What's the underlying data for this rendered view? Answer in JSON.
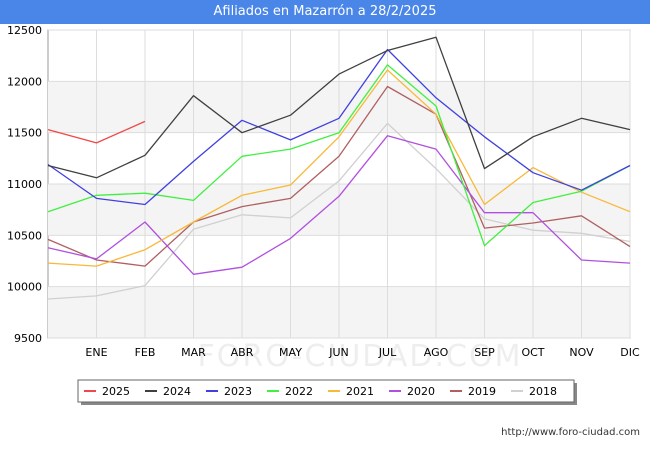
{
  "title": "Afiliados en Mazarrón a 28/2/2025",
  "footer_url": "http://www.foro-ciudad.com",
  "watermark": "FORO-CIUDAD.COM",
  "chart_data": {
    "type": "line",
    "x": [
      "",
      "ENE",
      "FEB",
      "MAR",
      "ABR",
      "MAY",
      "JUN",
      "JUL",
      "AGO",
      "SEP",
      "OCT",
      "NOV",
      "DIC"
    ],
    "ylim": [
      9500,
      12500
    ],
    "yticks": [
      9500,
      10000,
      10500,
      11000,
      11500,
      12000,
      12500
    ],
    "grid": true,
    "legend_position": "bottom",
    "series": [
      {
        "name": "2025",
        "color": "#f04848",
        "values": [
          11530,
          11400,
          11610,
          null,
          null,
          null,
          null,
          null,
          null,
          null,
          null,
          null,
          null
        ]
      },
      {
        "name": "2024",
        "color": "#404040",
        "values": [
          11180,
          11060,
          11280,
          11860,
          11500,
          11670,
          12070,
          12300,
          12430,
          11150,
          11460,
          11640,
          11530
        ]
      },
      {
        "name": "2023",
        "color": "#4040e0",
        "values": [
          11190,
          10860,
          10800,
          11220,
          11620,
          11430,
          11640,
          12310,
          11840,
          11460,
          11110,
          10940,
          11180
        ]
      },
      {
        "name": "2022",
        "color": "#40f040",
        "values": [
          10730,
          10890,
          10910,
          10840,
          11270,
          11340,
          11500,
          12160,
          11760,
          10400,
          10820,
          10930,
          11180
        ]
      },
      {
        "name": "2021",
        "color": "#f8b838",
        "values": [
          10230,
          10200,
          10360,
          10630,
          10890,
          10990,
          11460,
          12110,
          11680,
          10800,
          11160,
          10920,
          10730
        ]
      },
      {
        "name": "2020",
        "color": "#b050e0",
        "values": [
          10380,
          10270,
          10630,
          10120,
          10190,
          10470,
          10880,
          11470,
          11340,
          10720,
          10720,
          10260,
          10230
        ]
      },
      {
        "name": "2019",
        "color": "#b06060",
        "values": [
          10460,
          10260,
          10200,
          10630,
          10780,
          10860,
          11270,
          11950,
          11680,
          10570,
          10620,
          10690,
          10390
        ]
      },
      {
        "name": "2018",
        "color": "#d0d0d0",
        "values": [
          9880,
          9910,
          10010,
          10560,
          10700,
          10670,
          11030,
          11590,
          11150,
          10660,
          10550,
          10520,
          10440
        ]
      }
    ]
  }
}
